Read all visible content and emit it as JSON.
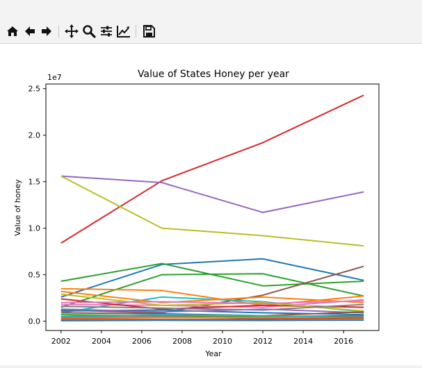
{
  "toolbar": {
    "buttons": [
      {
        "name": "home-icon"
      },
      {
        "name": "back-icon"
      },
      {
        "name": "forward-icon"
      },
      {
        "name": "pan-icon"
      },
      {
        "name": "zoom-icon"
      },
      {
        "name": "configure-subplots-icon"
      },
      {
        "name": "edit-axis-icon"
      },
      {
        "name": "save-icon"
      }
    ]
  },
  "chart_data": {
    "type": "line",
    "title": "Value of States Honey per year",
    "xlabel": "Year",
    "ylabel": "Value of honey",
    "y_scale_label": "1e7",
    "x": [
      2002,
      2007,
      2012,
      2017
    ],
    "xlim": [
      2001.25,
      2017.75
    ],
    "ylim": [
      -1000000,
      25500000
    ],
    "x_ticks": [
      2002,
      2004,
      2006,
      2008,
      2010,
      2012,
      2014,
      2016
    ],
    "y_ticks": [
      0,
      5000000,
      10000000,
      15000000,
      20000000,
      25000000
    ],
    "y_tick_labels": [
      "0.0",
      "0.5",
      "1.0",
      "1.5",
      "2.0",
      "2.5"
    ],
    "grid": false,
    "series": [
      {
        "color": "#d62728",
        "values": [
          8400000,
          15100000,
          19200000,
          24300000
        ]
      },
      {
        "color": "#9467bd",
        "values": [
          15600000,
          14900000,
          11700000,
          13900000
        ]
      },
      {
        "color": "#bcbd22",
        "values": [
          15600000,
          10000000,
          9200000,
          8100000
        ]
      },
      {
        "color": "#1f77b4",
        "values": [
          2600000,
          6100000,
          6700000,
          4400000
        ]
      },
      {
        "color": "#2ca02c",
        "values": [
          4300000,
          6200000,
          3800000,
          4300000
        ]
      },
      {
        "color": "#2ca02c",
        "values": [
          1500000,
          5000000,
          5100000,
          2700000
        ]
      },
      {
        "color": "#8c564b",
        "values": [
          1200000,
          900000,
          2800000,
          5900000
        ]
      },
      {
        "color": "#ff7f0e",
        "values": [
          3500000,
          3300000,
          1700000,
          2700000
        ]
      },
      {
        "color": "#17becf",
        "values": [
          900000,
          2600000,
          2100000,
          1000000
        ]
      },
      {
        "color": "#ff7f0e",
        "values": [
          3200000,
          2000000,
          2600000,
          2000000
        ]
      },
      {
        "color": "#e377c2",
        "values": [
          1800000,
          1700000,
          1500000,
          2300000
        ]
      },
      {
        "color": "#d62728",
        "values": [
          2400000,
          1300000,
          1700000,
          1500000
        ]
      },
      {
        "color": "#bcbd22",
        "values": [
          2900000,
          1700000,
          2000000,
          1100000
        ]
      },
      {
        "color": "#7f7f7f",
        "values": [
          1600000,
          1400000,
          1200000,
          1800000
        ]
      },
      {
        "color": "#1f77b4",
        "values": [
          1100000,
          1200000,
          900000,
          700000
        ]
      },
      {
        "color": "#9467bd",
        "values": [
          1300000,
          1000000,
          1300000,
          900000
        ]
      },
      {
        "color": "#8c564b",
        "values": [
          900000,
          800000,
          600000,
          1000000
        ]
      },
      {
        "color": "#e377c2",
        "values": [
          2000000,
          2100000,
          1900000,
          2200000
        ]
      },
      {
        "color": "#2ca02c",
        "values": [
          700000,
          600000,
          500000,
          600000
        ]
      },
      {
        "color": "#17becf",
        "values": [
          500000,
          700000,
          600000,
          400000
        ]
      },
      {
        "color": "#7f7f7f",
        "values": [
          400000,
          500000,
          300000,
          500000
        ]
      },
      {
        "color": "#ff7f0e",
        "values": [
          300000,
          400000,
          400000,
          300000
        ]
      },
      {
        "color": "#d62728",
        "values": [
          200000,
          200000,
          200000,
          300000
        ]
      },
      {
        "color": "#bcbd22",
        "values": [
          100000,
          150000,
          100000,
          200000
        ]
      },
      {
        "color": "#1f77b4",
        "values": [
          50000,
          100000,
          80000,
          120000
        ]
      }
    ]
  }
}
